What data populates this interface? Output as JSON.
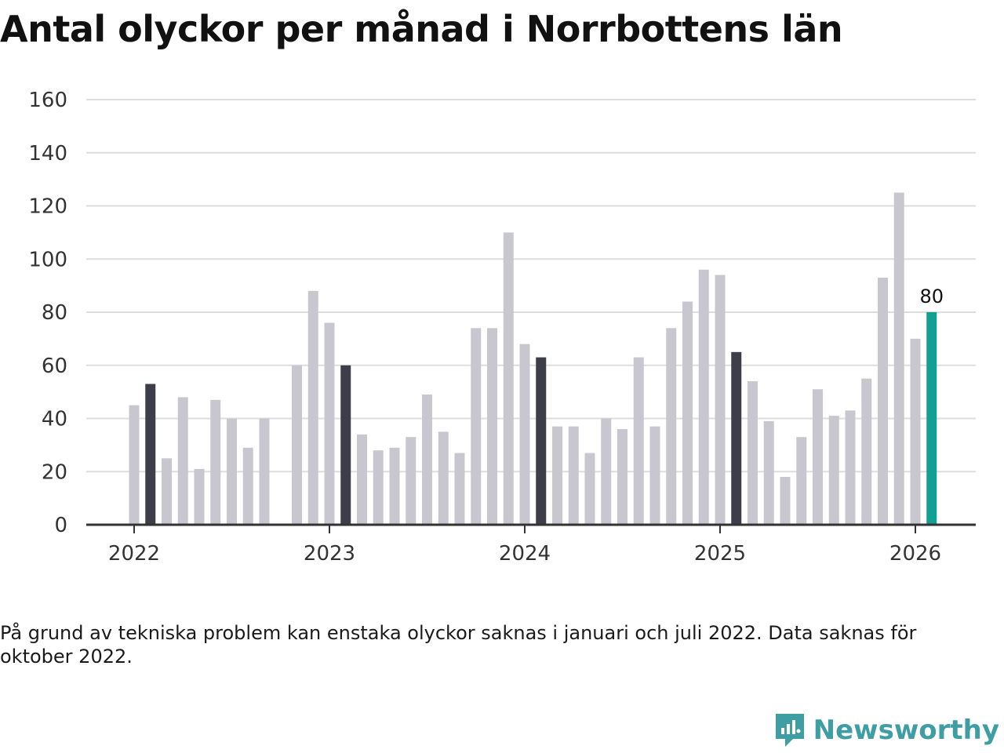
{
  "chart_data": {
    "type": "bar",
    "title": "Antal olyckor per månad i Norrbottens län",
    "xlabel": "",
    "ylabel": "",
    "ylim": [
      0,
      160
    ],
    "yticks": [
      0,
      20,
      40,
      60,
      80,
      100,
      120,
      140,
      160
    ],
    "xticks": [
      "2022",
      "2023",
      "2024",
      "2025",
      "2026"
    ],
    "grid": true,
    "categories": [
      "2022-01",
      "2022-02",
      "2022-03",
      "2022-04",
      "2022-05",
      "2022-06",
      "2022-07",
      "2022-08",
      "2022-09",
      "2022-10",
      "2022-11",
      "2022-12",
      "2023-01",
      "2023-02",
      "2023-03",
      "2023-04",
      "2023-05",
      "2023-06",
      "2023-07",
      "2023-08",
      "2023-09",
      "2023-10",
      "2023-11",
      "2023-12",
      "2024-01",
      "2024-02",
      "2024-03",
      "2024-04",
      "2024-05",
      "2024-06",
      "2024-07",
      "2024-08",
      "2024-09",
      "2024-10",
      "2024-11",
      "2024-12",
      "2025-01",
      "2025-02",
      "2025-03",
      "2025-04",
      "2025-05",
      "2025-06",
      "2025-07",
      "2025-08",
      "2025-09",
      "2025-10",
      "2025-11",
      "2025-12",
      "2026-01",
      "2026-02"
    ],
    "values": [
      45,
      53,
      25,
      48,
      21,
      47,
      40,
      29,
      40,
      null,
      60,
      88,
      76,
      60,
      34,
      28,
      29,
      33,
      49,
      35,
      27,
      74,
      74,
      110,
      68,
      63,
      37,
      37,
      27,
      40,
      36,
      63,
      37,
      74,
      84,
      96,
      94,
      65,
      54,
      39,
      18,
      33,
      51,
      41,
      43,
      55,
      93,
      125,
      70,
      80
    ],
    "highlight_months": [
      "2022-02",
      "2023-02",
      "2024-02",
      "2025-02"
    ],
    "current_month": "2026-02",
    "labeled_value": {
      "month": "2026-02",
      "value": 80,
      "text": "80"
    },
    "colors": {
      "bar": "#c8c7cf",
      "highlight": "#3e3e4a",
      "current": "#12a094",
      "grid": "#dddddd",
      "axis": "#333333"
    }
  },
  "note": "På grund av tekniska problem kan enstaka olyckor saknas i januari och juli 2022. Data saknas för oktober 2022.",
  "brand": {
    "name": "Newsworthy",
    "color": "#3f9da4",
    "icon": "newsworthy-logo-icon"
  }
}
